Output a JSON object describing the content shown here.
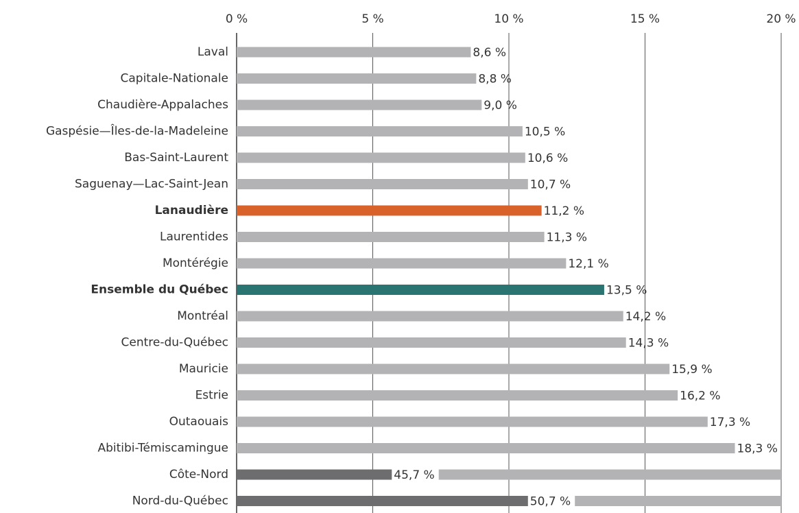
{
  "chart_data": {
    "type": "hbar",
    "categories": [
      "Laval",
      "Capitale-Nationale",
      "Chaudière-Appalaches",
      "Gaspésie—Îles-de-la-Madeleine",
      "Bas-Saint-Laurent",
      "Saguenay—Lac-Saint-Jean",
      "Lanaudière",
      "Laurentides",
      "Montérégie",
      "Ensemble du Québec",
      "Montréal",
      "Centre-du-Québec",
      "Mauricie",
      "Estrie",
      "Outaouais",
      "Abitibi-Témiscamingue",
      "Côte-Nord",
      "Nord-du-Québec"
    ],
    "values": [
      8.6,
      8.8,
      9.0,
      10.5,
      10.6,
      10.7,
      11.2,
      11.3,
      12.1,
      13.5,
      14.2,
      14.3,
      15.9,
      16.2,
      17.3,
      18.3,
      45.7,
      50.7
    ],
    "value_labels": [
      "8,6 %",
      "8,8 %",
      "9,0 %",
      "10,5 %",
      "10,6 %",
      "10,7 %",
      "11,2 %",
      "11,3 %",
      "12,1 %",
      "13,5 %",
      "14,2 %",
      "14,3 %",
      "15,9 %",
      "16,2 %",
      "17,3 %",
      "18,3 %",
      "45,7 %",
      "50,7 %"
    ],
    "color": "#b3b3b5",
    "colors": [
      "#b3b3b5",
      "#b3b3b5",
      "#b3b3b5",
      "#b3b3b5",
      "#b3b3b5",
      "#b3b3b5",
      "#d9622b",
      "#b3b3b5",
      "#b3b3b5",
      "#2a7572",
      "#b3b3b5",
      "#b3b3b5",
      "#b3b3b5",
      "#b3b3b5",
      "#b3b3b5",
      "#b3b3b5",
      "#6d6d6f",
      "#6d6d6f"
    ],
    "xlim": [
      0,
      20
    ],
    "xticks": [
      {
        "value": 0,
        "label": "0 %"
      },
      {
        "value": 5,
        "label": "5 %"
      },
      {
        "value": 10,
        "label": "10 %"
      },
      {
        "value": 15,
        "label": "15 %"
      },
      {
        "value": 20,
        "label": "20 %"
      }
    ],
    "grid": true
  }
}
